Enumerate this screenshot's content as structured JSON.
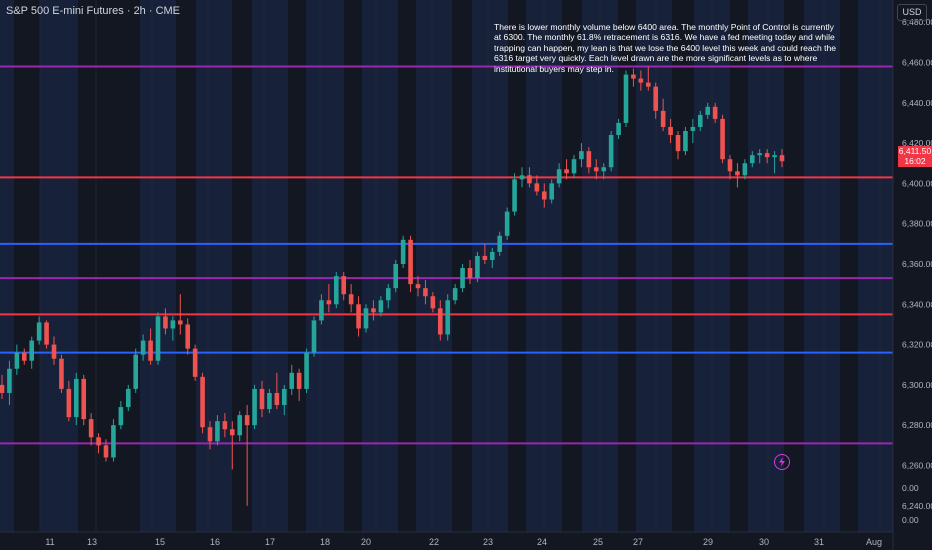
{
  "header": {
    "symbol_title": "S&P 500 E-mini Futures · 2h · CME",
    "currency": "USD"
  },
  "annotation": {
    "text": "There is lower monthly volume below 6400 area. The monthly Point of Control is currently at 6300. The monthly 61.8% retracement is 6316. We have a fed meeting today and while trapping can happen, my lean is that we lose the 6400 level this week and could reach the 6316 target very quickly. Each level drawn are the more significant levels as to where institutional buyers may step in."
  },
  "price_flag": {
    "price": "6,411.50",
    "countdown": "16:02"
  },
  "colors": {
    "background": "#131722",
    "shade": "#1b2a4c",
    "up": "#26a69a",
    "down": "#ef5350",
    "red_level": "#f23645",
    "purple_level": "#9c27b0",
    "blue_level": "#2962ff"
  },
  "chart_data": {
    "type": "candlestick",
    "ylim": [
      6227,
      6491
    ],
    "y_ticks": [
      {
        "value": 6480,
        "label": "6,480.00"
      },
      {
        "value": 6460,
        "label": "6,460.00"
      },
      {
        "value": 6440,
        "label": "6,440.00"
      },
      {
        "value": 6420,
        "label": "6,420.00"
      },
      {
        "value": 6400,
        "label": "6,400.00"
      },
      {
        "value": 6380,
        "label": "6,380.00"
      },
      {
        "value": 6360,
        "label": "6,360.00"
      },
      {
        "value": 6340,
        "label": "6,340.00"
      },
      {
        "value": 6320,
        "label": "6,320.00"
      },
      {
        "value": 6300,
        "label": "6,300.00"
      },
      {
        "value": 6280,
        "label": "6,280.00"
      },
      {
        "value": 6260,
        "label": "6,260.00"
      },
      {
        "value": 6240,
        "label": "6,240.00"
      }
    ],
    "indicator_labels": [
      "0.00",
      "0.00"
    ],
    "x_ticks": [
      "11",
      "13",
      "15",
      "16",
      "17",
      "18",
      "20",
      "22",
      "23",
      "24",
      "25",
      "27",
      "29",
      "30",
      "31",
      "Aug"
    ],
    "levels": [
      {
        "price": 6458,
        "color": "purple"
      },
      {
        "price": 6403,
        "color": "red"
      },
      {
        "price": 6370,
        "color": "blue"
      },
      {
        "price": 6353,
        "color": "purple"
      },
      {
        "price": 6335,
        "color": "red"
      },
      {
        "price": 6316,
        "color": "blue"
      },
      {
        "price": 6271,
        "color": "purple"
      }
    ],
    "candles": [
      [
        6300,
        6305,
        6293,
        6296
      ],
      [
        6296,
        6312,
        6290,
        6308
      ],
      [
        6308,
        6320,
        6305,
        6316
      ],
      [
        6316,
        6318,
        6310,
        6312
      ],
      [
        6312,
        6324,
        6308,
        6322
      ],
      [
        6322,
        6334,
        6320,
        6331
      ],
      [
        6331,
        6332,
        6318,
        6320
      ],
      [
        6320,
        6324,
        6310,
        6313
      ],
      [
        6313,
        6315,
        6296,
        6298
      ],
      [
        6298,
        6302,
        6282,
        6284
      ],
      [
        6284,
        6306,
        6280,
        6303
      ],
      [
        6303,
        6305,
        6280,
        6283
      ],
      [
        6283,
        6286,
        6270,
        6274
      ],
      [
        6274,
        6276,
        6266,
        6270
      ],
      [
        6270,
        6273,
        6262,
        6264
      ],
      [
        6264,
        6283,
        6262,
        6280
      ],
      [
        6280,
        6292,
        6278,
        6289
      ],
      [
        6289,
        6300,
        6287,
        6298
      ],
      [
        6298,
        6318,
        6296,
        6315
      ],
      [
        6315,
        6325,
        6312,
        6322
      ],
      [
        6322,
        6328,
        6310,
        6312
      ],
      [
        6312,
        6336,
        6310,
        6334
      ],
      [
        6334,
        6338,
        6325,
        6328
      ],
      [
        6328,
        6334,
        6322,
        6332
      ],
      [
        6332,
        6345,
        6325,
        6330
      ],
      [
        6330,
        6333,
        6315,
        6318
      ],
      [
        6318,
        6320,
        6302,
        6304
      ],
      [
        6304,
        6306,
        6276,
        6279
      ],
      [
        6279,
        6282,
        6268,
        6272
      ],
      [
        6272,
        6285,
        6270,
        6282
      ],
      [
        6282,
        6286,
        6274,
        6278
      ],
      [
        6278,
        6282,
        6258,
        6275
      ],
      [
        6275,
        6287,
        6272,
        6285
      ],
      [
        6285,
        6290,
        6240,
        6280
      ],
      [
        6280,
        6300,
        6278,
        6298
      ],
      [
        6298,
        6302,
        6284,
        6288
      ],
      [
        6288,
        6298,
        6286,
        6296
      ],
      [
        6296,
        6306,
        6288,
        6290
      ],
      [
        6290,
        6300,
        6285,
        6298
      ],
      [
        6298,
        6310,
        6295,
        6306
      ],
      [
        6306,
        6308,
        6292,
        6298
      ],
      [
        6298,
        6318,
        6296,
        6316
      ],
      [
        6316,
        6334,
        6314,
        6332
      ],
      [
        6332,
        6345,
        6330,
        6342
      ],
      [
        6342,
        6350,
        6336,
        6340
      ],
      [
        6340,
        6356,
        6338,
        6354
      ],
      [
        6354,
        6356,
        6342,
        6345
      ],
      [
        6345,
        6350,
        6336,
        6340
      ],
      [
        6340,
        6344,
        6324,
        6328
      ],
      [
        6328,
        6340,
        6326,
        6338
      ],
      [
        6338,
        6342,
        6332,
        6336
      ],
      [
        6336,
        6344,
        6334,
        6342
      ],
      [
        6342,
        6350,
        6338,
        6348
      ],
      [
        6348,
        6362,
        6346,
        6360
      ],
      [
        6360,
        6374,
        6358,
        6372
      ],
      [
        6372,
        6374,
        6346,
        6350
      ],
      [
        6350,
        6354,
        6344,
        6348
      ],
      [
        6348,
        6352,
        6340,
        6344
      ],
      [
        6344,
        6346,
        6336,
        6338
      ],
      [
        6338,
        6342,
        6322,
        6325
      ],
      [
        6325,
        6345,
        6322,
        6342
      ],
      [
        6342,
        6350,
        6340,
        6348
      ],
      [
        6348,
        6360,
        6346,
        6358
      ],
      [
        6358,
        6362,
        6350,
        6353
      ],
      [
        6353,
        6366,
        6351,
        6364
      ],
      [
        6364,
        6370,
        6360,
        6362
      ],
      [
        6362,
        6368,
        6358,
        6366
      ],
      [
        6366,
        6376,
        6364,
        6374
      ],
      [
        6374,
        6388,
        6372,
        6386
      ],
      [
        6386,
        6405,
        6384,
        6402
      ],
      [
        6402,
        6408,
        6398,
        6404
      ],
      [
        6404,
        6408,
        6398,
        6400
      ],
      [
        6400,
        6404,
        6394,
        6396
      ],
      [
        6396,
        6400,
        6388,
        6392
      ],
      [
        6392,
        6402,
        6390,
        6400
      ],
      [
        6400,
        6410,
        6398,
        6407
      ],
      [
        6407,
        6412,
        6402,
        6405
      ],
      [
        6405,
        6414,
        6403,
        6412
      ],
      [
        6412,
        6420,
        6408,
        6416
      ],
      [
        6416,
        6418,
        6405,
        6408
      ],
      [
        6408,
        6412,
        6402,
        6406
      ],
      [
        6406,
        6410,
        6402,
        6408
      ],
      [
        6408,
        6426,
        6406,
        6424
      ],
      [
        6424,
        6432,
        6422,
        6430
      ],
      [
        6430,
        6456,
        6428,
        6454
      ],
      [
        6454,
        6457,
        6448,
        6452
      ],
      [
        6452,
        6456,
        6446,
        6450
      ],
      [
        6450,
        6458,
        6446,
        6448
      ],
      [
        6448,
        6450,
        6432,
        6436
      ],
      [
        6436,
        6442,
        6426,
        6428
      ],
      [
        6428,
        6432,
        6420,
        6424
      ],
      [
        6424,
        6426,
        6412,
        6416
      ],
      [
        6416,
        6428,
        6414,
        6426
      ],
      [
        6426,
        6432,
        6420,
        6428
      ],
      [
        6428,
        6436,
        6426,
        6434
      ],
      [
        6434,
        6440,
        6432,
        6438
      ],
      [
        6438,
        6440,
        6430,
        6432
      ],
      [
        6432,
        6434,
        6410,
        6412
      ],
      [
        6412,
        6414,
        6402,
        6406
      ],
      [
        6406,
        6410,
        6398,
        6404
      ],
      [
        6404,
        6412,
        6402,
        6410
      ],
      [
        6410,
        6416,
        6408,
        6414
      ],
      [
        6414,
        6417,
        6410,
        6415
      ],
      [
        6415,
        6417,
        6410,
        6413
      ],
      [
        6413,
        6416,
        6405,
        6414
      ],
      [
        6414,
        6417,
        6408,
        6411
      ]
    ]
  }
}
